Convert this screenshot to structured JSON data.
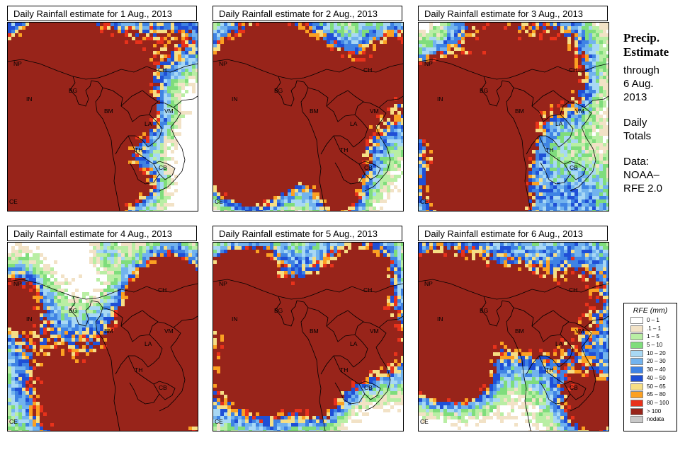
{
  "panels": [
    {
      "title": "Daily Rainfall estimate for  1 Aug., 2013",
      "seed": 11
    },
    {
      "title": "Daily Rainfall estimate for  2 Aug., 2013",
      "seed": 23
    },
    {
      "title": "Daily Rainfall estimate for  3 Aug., 2013",
      "seed": 37
    },
    {
      "title": "Daily Rainfall estimate for  4 Aug., 2013",
      "seed": 41
    },
    {
      "title": "Daily Rainfall estimate for  5 Aug., 2013",
      "seed": 53
    },
    {
      "title": "Daily Rainfall estimate for  6 Aug., 2013",
      "seed": 67
    }
  ],
  "country_labels": [
    "NP",
    "CH",
    "IN",
    "BG",
    "BM",
    "VM",
    "LA",
    "TH",
    "CB",
    "CE"
  ],
  "side_text": {
    "heading_1": "Precip.",
    "heading_2": "Estimate",
    "line_1": "through",
    "line_2": "6 Aug.",
    "line_3": "2013",
    "line_4": "Daily",
    "line_5": "Totals",
    "line_6": "Data:",
    "line_7": "NOAA–",
    "line_8": "RFE 2.0"
  },
  "legend": {
    "title": "RFE (mm)",
    "items": [
      {
        "label": "0 – 1",
        "color": "#ffffff"
      },
      {
        "label": ".1 – 1",
        "color": "#f2e2c6"
      },
      {
        "label": "1 – 5",
        "color": "#b9eea4"
      },
      {
        "label": "5 – 10",
        "color": "#7fdd7c"
      },
      {
        "label": "10 – 20",
        "color": "#a8d8f4"
      },
      {
        "label": "20 – 30",
        "color": "#72b3ee"
      },
      {
        "label": "30 – 40",
        "color": "#3f83e4"
      },
      {
        "label": "40 – 50",
        "color": "#1f4fd6"
      },
      {
        "label": "50 – 65",
        "color": "#f6de84"
      },
      {
        "label": "65 – 80",
        "color": "#fba022"
      },
      {
        "label": "80 – 100",
        "color": "#e8321b"
      },
      {
        "label": "> 100",
        "color": "#98241a"
      },
      {
        "label": "nodata",
        "color": "#c8c8c8"
      }
    ]
  }
}
